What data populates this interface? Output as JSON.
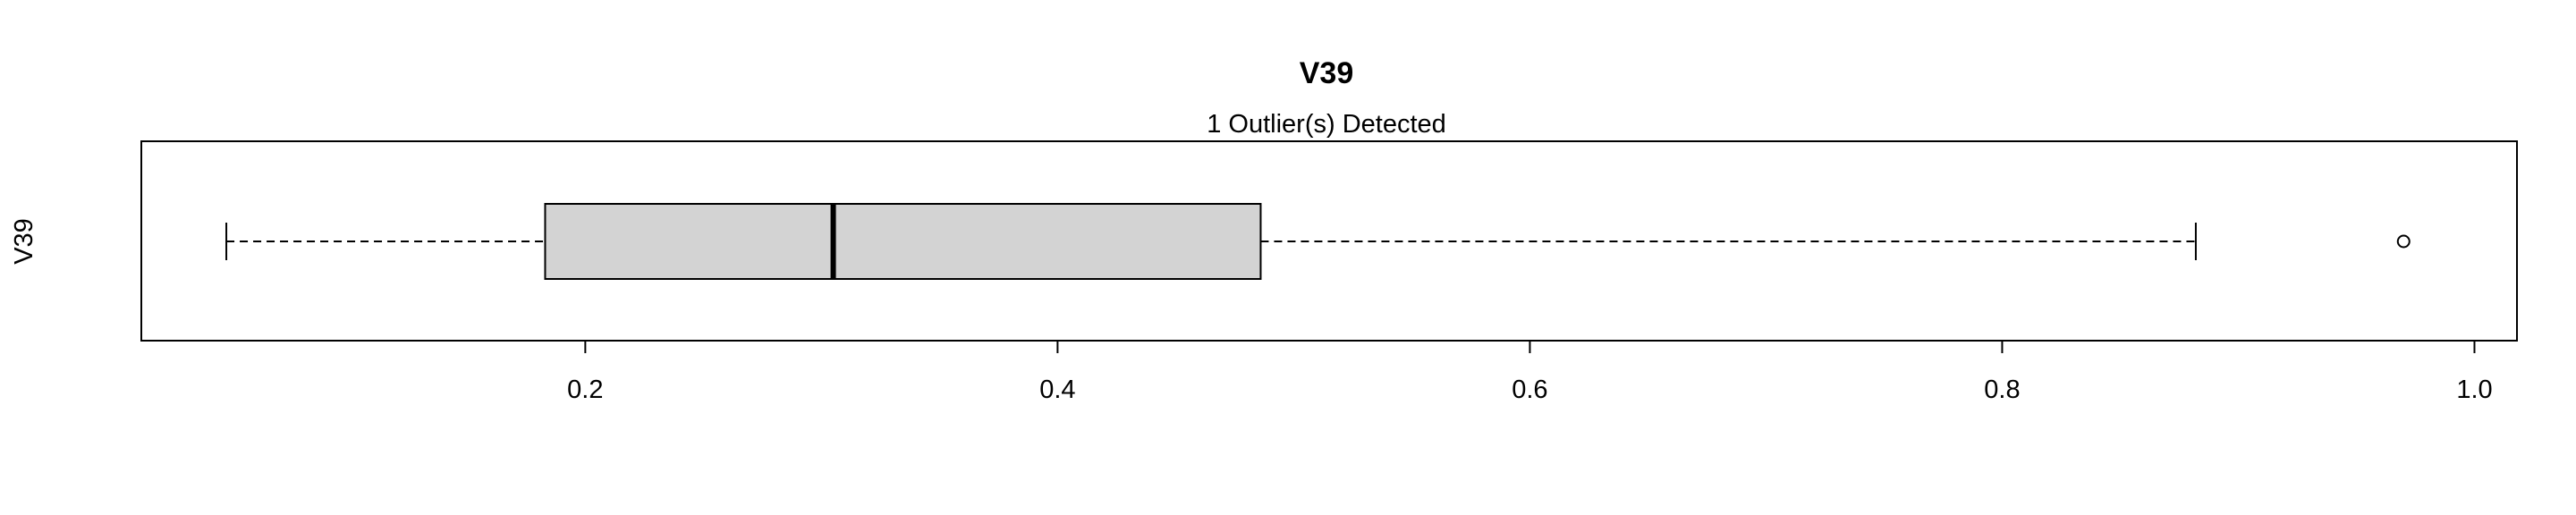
{
  "chart_data": {
    "type": "boxplot",
    "orientation": "horizontal",
    "title": "V39",
    "subtitle": "1 Outlier(s) Detected",
    "ylabel": "V39",
    "xlim": [
      0.012,
      1.018
    ],
    "x_ticks": [
      0.2,
      0.4,
      0.6,
      0.8,
      1.0
    ],
    "x_tick_labels": [
      "0.2",
      "0.4",
      "0.6",
      "0.8",
      "1.0"
    ],
    "series": [
      {
        "whisker_low": 0.048,
        "q1": 0.183,
        "median": 0.305,
        "q3": 0.486,
        "whisker_high": 0.882,
        "outliers": [
          0.97
        ]
      }
    ],
    "colors": {
      "box_fill": "#d3d3d3",
      "stroke": "#000000"
    }
  }
}
